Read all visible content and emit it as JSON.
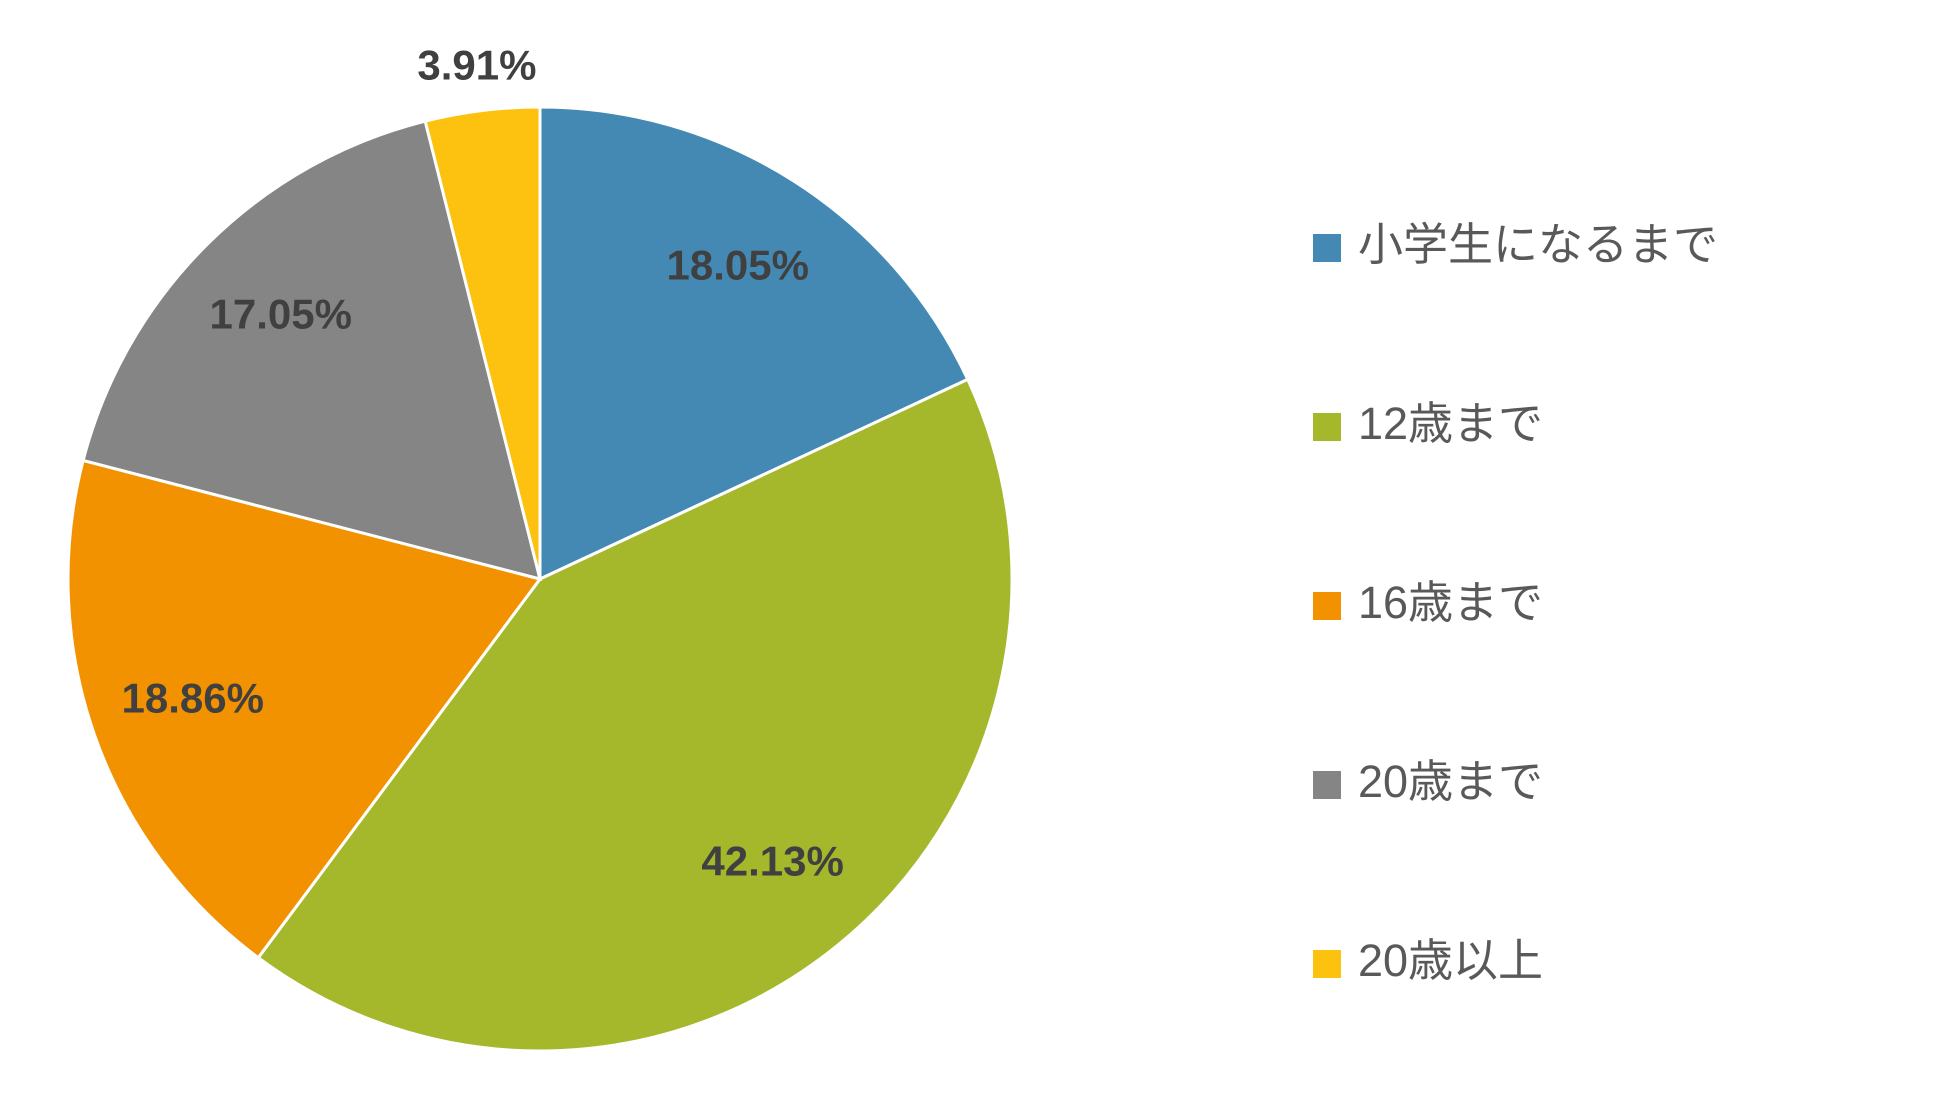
{
  "chart_data": {
    "type": "pie",
    "categories": [
      "小学生になるまで",
      "12歳まで",
      "16歳まで",
      "20歳まで",
      "20歳以上"
    ],
    "values": [
      18.05,
      42.13,
      18.86,
      17.05,
      3.91
    ],
    "value_labels": [
      "18.05%",
      "42.13%",
      "18.86%",
      "17.05%",
      "3.91%"
    ],
    "colors": [
      "#4489b4",
      "#a5b82b",
      "#f39200",
      "#858585",
      "#fdc10f"
    ],
    "legend": "right"
  }
}
